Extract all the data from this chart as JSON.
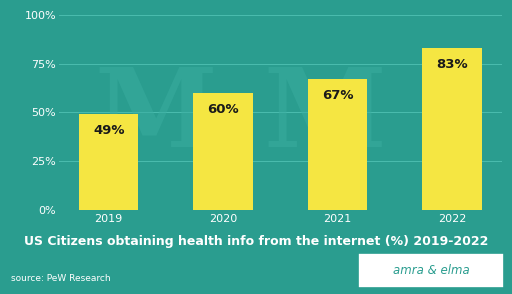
{
  "categories": [
    "2019",
    "2020",
    "2021",
    "2022"
  ],
  "values": [
    49,
    60,
    67,
    83
  ],
  "bar_color": "#F5E642",
  "bg_color": "#2A9D8F",
  "plot_bg_color": "#2A9D8F",
  "grid_color": "#4BBCAE",
  "title": "US Citizens obtaining health info from the internet (%) 2019-2022",
  "source": "source: PeW Research",
  "brand": "amra & elma",
  "ylim": [
    0,
    100
  ],
  "yticks": [
    0,
    25,
    50,
    75,
    100
  ],
  "ytick_labels": [
    "0%",
    "25%",
    "50%",
    "75%",
    "100%"
  ],
  "title_fontsize": 9.0,
  "tick_fontsize": 8.0,
  "source_fontsize": 6.5,
  "brand_fontsize": 8.5,
  "bar_label_fontsize": 9.5,
  "watermark_color": "#3AADA0",
  "text_color": "#1a1a1a",
  "bar_width": 0.52,
  "brand_border_color": "#2A9D8F"
}
